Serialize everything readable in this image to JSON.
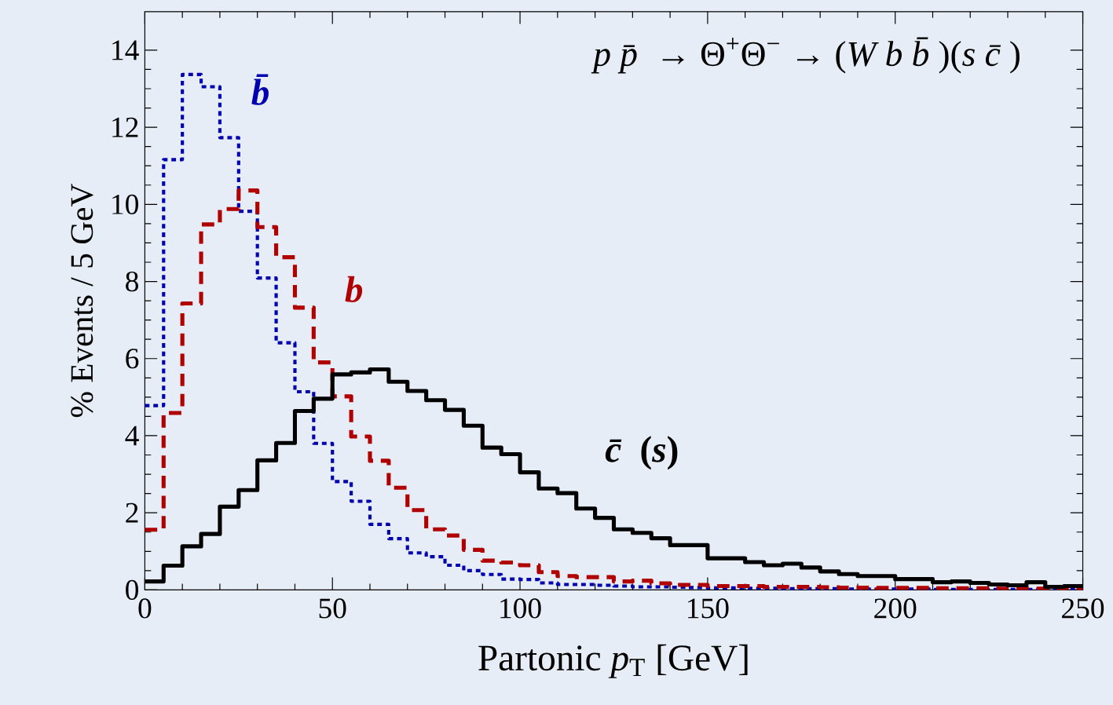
{
  "chart_data": {
    "type": "histogram",
    "title": "*p* *p̄* → Θ$^{+}$Θ$^{−}$ → (*W b b̄*)(*s c̄*)",
    "xlabel": "Partonic *p*$_{T}$ [GeV]",
    "ylabel": "% Events / 5 GeV",
    "bins": [
      0,
      5,
      10,
      15,
      20,
      25,
      30,
      35,
      40,
      45,
      50,
      55,
      60,
      65,
      70,
      75,
      80,
      85,
      90,
      95,
      100,
      105,
      110,
      115,
      120,
      125,
      130,
      135,
      140,
      145,
      150,
      155,
      160,
      165,
      170,
      175,
      180,
      185,
      190,
      195,
      200,
      205,
      210,
      215,
      220,
      225,
      230,
      235,
      240,
      245,
      250
    ],
    "series": [
      {
        "name": "*b̄*",
        "color": "#0000b0",
        "line_style": "dotted",
        "values": [
          4.78,
          11.16,
          13.37,
          13.05,
          11.73,
          9.82,
          8.09,
          6.41,
          5.14,
          3.8,
          2.81,
          2.3,
          1.7,
          1.33,
          0.96,
          0.86,
          0.64,
          0.5,
          0.4,
          0.28,
          0.27,
          0.18,
          0.14,
          0.14,
          0.12,
          0.1,
          0.08,
          0.08,
          0.07,
          0.06,
          0.05,
          0.05,
          0.04,
          0.04,
          0.03,
          0.03,
          0.03,
          0.02,
          0.02,
          0.02,
          0.02,
          0.02,
          0.01,
          0.01,
          0.01,
          0.01,
          0.01,
          0.01,
          0.01,
          0.01
        ]
      },
      {
        "name": "*b*",
        "color": "#b00000",
        "line_style": "dashed",
        "values": [
          1.56,
          4.59,
          7.43,
          9.48,
          9.88,
          10.36,
          9.41,
          8.63,
          7.32,
          5.9,
          5.02,
          3.98,
          3.35,
          2.65,
          2.07,
          1.57,
          1.41,
          1.04,
          0.76,
          0.71,
          0.64,
          0.46,
          0.36,
          0.33,
          0.33,
          0.22,
          0.24,
          0.17,
          0.13,
          0.13,
          0.1,
          0.1,
          0.1,
          0.08,
          0.08,
          0.08,
          0.07,
          0.06,
          0.06,
          0.05,
          0.05,
          0.05,
          0.04,
          0.04,
          0.04,
          0.03,
          0.03,
          0.03,
          0.03,
          0.02
        ]
      },
      {
        "name": "*c̄* (*s*)",
        "color": "#000000",
        "line_style": "solid",
        "values": [
          0.22,
          0.63,
          1.13,
          1.45,
          2.16,
          2.59,
          3.36,
          3.81,
          4.64,
          4.96,
          5.59,
          5.64,
          5.72,
          5.4,
          5.16,
          4.92,
          4.67,
          4.26,
          3.69,
          3.52,
          3.05,
          2.63,
          2.51,
          2.11,
          1.87,
          1.57,
          1.48,
          1.34,
          1.16,
          1.16,
          0.82,
          0.82,
          0.72,
          0.64,
          0.68,
          0.58,
          0.48,
          0.41,
          0.36,
          0.36,
          0.28,
          0.28,
          0.2,
          0.22,
          0.18,
          0.14,
          0.12,
          0.2,
          0.08,
          0.1
        ]
      }
    ],
    "xlim": [
      0,
      250
    ],
    "ylim": [
      0,
      15
    ],
    "xticks": [
      0,
      50,
      100,
      150,
      200,
      250
    ],
    "yticks": [
      0,
      2,
      4,
      6,
      8,
      10,
      12,
      14
    ],
    "grid": false
  }
}
